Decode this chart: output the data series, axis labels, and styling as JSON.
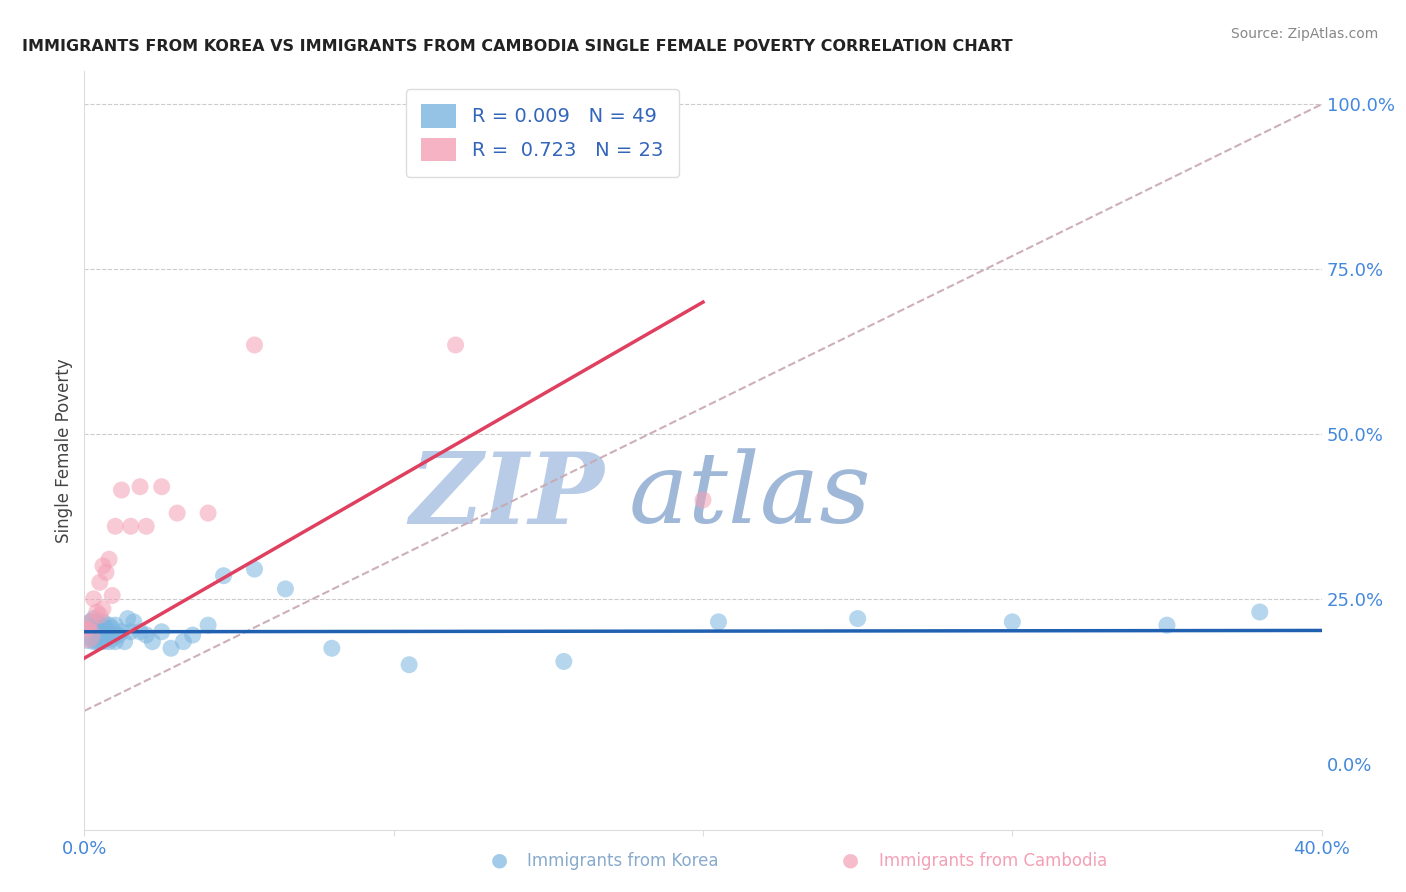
{
  "title": "IMMIGRANTS FROM KOREA VS IMMIGRANTS FROM CAMBODIA SINGLE FEMALE POVERTY CORRELATION CHART",
  "source_text": "Source: ZipAtlas.com",
  "xlabel_korea": "Immigrants from Korea",
  "xlabel_cambodia": "Immigrants from Cambodia",
  "ylabel": "Single Female Poverty",
  "korea_R": 0.009,
  "korea_N": 49,
  "cambodia_R": 0.723,
  "cambodia_N": 23,
  "xmin": 0.0,
  "xmax": 0.4,
  "ymin": -0.1,
  "ymax": 1.05,
  "right_yticks": [
    0.0,
    0.25,
    0.5,
    0.75,
    1.0
  ],
  "right_yticklabels": [
    "0.0%",
    "25.0%",
    "50.0%",
    "75.0%",
    "100.0%"
  ],
  "korea_color": "#7ab5e0",
  "cambodia_color": "#f4a0b5",
  "korea_line_color": "#2060b0",
  "cambodia_line_color": "#e04060",
  "ref_line_color": "#c8a8b0",
  "grid_color": "#cccccc",
  "title_color": "#222222",
  "axis_label_color": "#4488dd",
  "watermark_color_zip": "#b8cce8",
  "watermark_color_atlas": "#a0b8d8",
  "background_color": "#ffffff",
  "korea_scatter_x": [
    0.001,
    0.002,
    0.002,
    0.003,
    0.003,
    0.003,
    0.004,
    0.004,
    0.004,
    0.005,
    0.005,
    0.005,
    0.006,
    0.006,
    0.006,
    0.007,
    0.007,
    0.008,
    0.008,
    0.008,
    0.009,
    0.009,
    0.01,
    0.01,
    0.011,
    0.012,
    0.013,
    0.014,
    0.015,
    0.016,
    0.018,
    0.02,
    0.022,
    0.025,
    0.028,
    0.032,
    0.035,
    0.04,
    0.045,
    0.055,
    0.065,
    0.08,
    0.105,
    0.155,
    0.205,
    0.25,
    0.3,
    0.35,
    0.38
  ],
  "korea_scatter_y": [
    0.195,
    0.19,
    0.215,
    0.185,
    0.205,
    0.22,
    0.185,
    0.2,
    0.215,
    0.185,
    0.2,
    0.215,
    0.185,
    0.2,
    0.215,
    0.19,
    0.205,
    0.185,
    0.2,
    0.21,
    0.19,
    0.205,
    0.185,
    0.21,
    0.195,
    0.2,
    0.185,
    0.22,
    0.2,
    0.215,
    0.2,
    0.195,
    0.185,
    0.2,
    0.175,
    0.185,
    0.195,
    0.21,
    0.285,
    0.295,
    0.265,
    0.175,
    0.15,
    0.155,
    0.215,
    0.22,
    0.215,
    0.21,
    0.23
  ],
  "korea_scatter_sizes": [
    400,
    150,
    150,
    150,
    150,
    150,
    150,
    150,
    150,
    150,
    150,
    150,
    150,
    150,
    150,
    150,
    150,
    150,
    150,
    150,
    150,
    150,
    150,
    150,
    150,
    150,
    150,
    150,
    150,
    150,
    150,
    150,
    150,
    150,
    150,
    150,
    150,
    150,
    150,
    150,
    150,
    150,
    150,
    150,
    150,
    150,
    150,
    150,
    150
  ],
  "cambodia_scatter_x": [
    0.001,
    0.002,
    0.003,
    0.004,
    0.005,
    0.005,
    0.006,
    0.006,
    0.007,
    0.008,
    0.009,
    0.01,
    0.012,
    0.015,
    0.018,
    0.02,
    0.025,
    0.03,
    0.04,
    0.055,
    0.12,
    0.2,
    0.001
  ],
  "cambodia_scatter_y": [
    0.205,
    0.215,
    0.25,
    0.23,
    0.225,
    0.275,
    0.235,
    0.3,
    0.29,
    0.31,
    0.255,
    0.36,
    0.415,
    0.36,
    0.42,
    0.36,
    0.42,
    0.38,
    0.38,
    0.635,
    0.635,
    0.4,
    0.195
  ],
  "cambodia_scatter_sizes": [
    150,
    150,
    150,
    150,
    150,
    150,
    150,
    150,
    150,
    150,
    150,
    150,
    150,
    150,
    150,
    150,
    150,
    150,
    150,
    150,
    150,
    150,
    350
  ],
  "korea_trend_x0": 0.0,
  "korea_trend_y0": 0.2,
  "korea_trend_x1": 0.4,
  "korea_trend_y1": 0.202,
  "cambodia_trend_x0": 0.0,
  "cambodia_trend_y0": 0.16,
  "cambodia_trend_x1": 0.2,
  "cambodia_trend_y1": 0.7
}
